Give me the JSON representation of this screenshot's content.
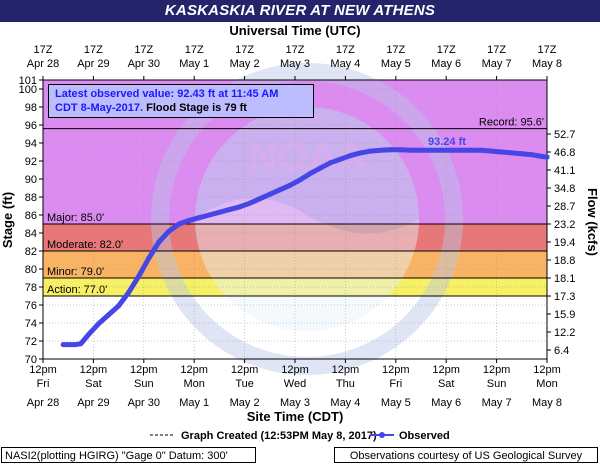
{
  "title": "KASKASKIA RIVER AT NEW ATHENS",
  "annotation": {
    "line1": "Latest observed value: 92.43  ft at 11:45 AM",
    "line2a": "CDT 8-May-2017.",
    "line2b": " Flood Stage is 79 ft"
  },
  "legend": {
    "created": "Graph Created (12:53PM May 8, 2017)",
    "observed": "Observed"
  },
  "footer": {
    "left": "NASI2(plotting HGIRG) \"Gage 0\" Datum: 300'",
    "right": "Observations courtesy of US Geological Survey"
  },
  "watermark": "NOAA",
  "colors": {
    "banner": "#24246b",
    "record_zone": "#dc8cf0",
    "major_zone": "#b496dc",
    "moderate_zone": "#e87878",
    "minor_zone": "#f8b464",
    "action_zone": "#f8f064",
    "series": "#4646e6"
  },
  "chart_data": {
    "type": "line",
    "top_axis_label": "Universal Time (UTC)",
    "top_ticks": [
      {
        "l1": "17Z",
        "l2": "Apr 28"
      },
      {
        "l1": "17Z",
        "l2": "Apr 29"
      },
      {
        "l1": "17Z",
        "l2": "Apr 30"
      },
      {
        "l1": "17Z",
        "l2": "May 1"
      },
      {
        "l1": "17Z",
        "l2": "May 2"
      },
      {
        "l1": "17Z",
        "l2": "May 3"
      },
      {
        "l1": "17Z",
        "l2": "May 4"
      },
      {
        "l1": "17Z",
        "l2": "May 5"
      },
      {
        "l1": "17Z",
        "l2": "May 6"
      },
      {
        "l1": "17Z",
        "l2": "May 7"
      },
      {
        "l1": "17Z",
        "l2": "May 8"
      }
    ],
    "xlabel": "Site Time (CDT)",
    "x_ticks": [
      {
        "l1": "12pm",
        "l2": "Fri",
        "l3": "Apr 28"
      },
      {
        "l1": "12pm",
        "l2": "Sat",
        "l3": "Apr 29"
      },
      {
        "l1": "12pm",
        "l2": "Sun",
        "l3": "Apr 30"
      },
      {
        "l1": "12pm",
        "l2": "Mon",
        "l3": "May 1"
      },
      {
        "l1": "12pm",
        "l2": "Tue",
        "l3": "May 2"
      },
      {
        "l1": "12pm",
        "l2": "Wed",
        "l3": "May 3"
      },
      {
        "l1": "12pm",
        "l2": "Thu",
        "l3": "May 4"
      },
      {
        "l1": "12pm",
        "l2": "Fri",
        "l3": "May 5"
      },
      {
        "l1": "12pm",
        "l2": "Sat",
        "l3": "May 6"
      },
      {
        "l1": "12pm",
        "l2": "Sun",
        "l3": "May 7"
      },
      {
        "l1": "12pm",
        "l2": "Mon",
        "l3": "May 8"
      }
    ],
    "xlim_days": [
      0,
      10
    ],
    "ylabel": "Stage (ft)",
    "ylim": [
      70,
      101
    ],
    "y_ticks": [
      70,
      72,
      74,
      76,
      78,
      80,
      82,
      84,
      86,
      88,
      90,
      92,
      94,
      96,
      98,
      100,
      101
    ],
    "ylabel_right": "Flow (kcfs)",
    "flow_ticks": [
      {
        "stage": 71,
        "label": "6.4"
      },
      {
        "stage": 73,
        "label": "12.2"
      },
      {
        "stage": 75,
        "label": "15.9"
      },
      {
        "stage": 77,
        "label": "17.3"
      },
      {
        "stage": 79,
        "label": "18.1"
      },
      {
        "stage": 81,
        "label": "18.8"
      },
      {
        "stage": 83,
        "label": "19.4"
      },
      {
        "stage": 85,
        "label": "23.2"
      },
      {
        "stage": 87,
        "label": "28.7"
      },
      {
        "stage": 89,
        "label": "34.8"
      },
      {
        "stage": 91,
        "label": "41.1"
      },
      {
        "stage": 93,
        "label": "46.8"
      },
      {
        "stage": 95,
        "label": "52.7"
      }
    ],
    "thresholds": [
      {
        "name": "action",
        "label": "Action: 77.0'",
        "stage": 77.0
      },
      {
        "name": "minor",
        "label": "Minor: 79.0'",
        "stage": 79.0
      },
      {
        "name": "moderate",
        "label": "Moderate: 82.0'",
        "stage": 82.0
      },
      {
        "name": "major",
        "label": "Major: 85.0'",
        "stage": 85.0
      },
      {
        "name": "record",
        "label": "Record: 95.6'",
        "stage": 95.6
      }
    ],
    "peak_label": "93.24 ft",
    "series": [
      {
        "name": "Observed",
        "x_days_since_apr28_noon": [
          0.4,
          0.65,
          0.75,
          0.9,
          1.1,
          1.3,
          1.5,
          1.7,
          1.9,
          2.1,
          2.3,
          2.5,
          2.7,
          2.9,
          3.1,
          3.3,
          3.5,
          3.7,
          3.9,
          4.1,
          4.3,
          4.5,
          4.7,
          4.9,
          5.1,
          5.3,
          5.5,
          5.7,
          5.9,
          6.1,
          6.3,
          6.5,
          6.7,
          6.9,
          7.1,
          7.3,
          7.5,
          7.7,
          7.9,
          8.1,
          8.3,
          8.5,
          8.7,
          8.9,
          9.1,
          9.3,
          9.5,
          9.7,
          9.9,
          10.0
        ],
        "stage_ft": [
          71.6,
          71.6,
          71.7,
          72.7,
          73.9,
          74.9,
          75.9,
          77.4,
          79.2,
          81.2,
          83.0,
          84.2,
          85.0,
          85.4,
          85.7,
          86.0,
          86.3,
          86.6,
          86.9,
          87.3,
          87.8,
          88.3,
          88.8,
          89.3,
          89.9,
          90.6,
          91.2,
          91.8,
          92.2,
          92.6,
          92.9,
          93.1,
          93.2,
          93.24,
          93.24,
          93.2,
          93.2,
          93.2,
          93.2,
          93.2,
          93.2,
          93.2,
          93.2,
          93.1,
          93.0,
          92.9,
          92.8,
          92.7,
          92.5,
          92.43
        ]
      }
    ]
  }
}
